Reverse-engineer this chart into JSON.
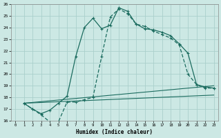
{
  "xlabel": "Humidex (Indice chaleur)",
  "xlim": [
    -0.5,
    23.5
  ],
  "ylim": [
    16,
    26
  ],
  "xticks": [
    0,
    1,
    2,
    3,
    4,
    5,
    6,
    7,
    8,
    9,
    10,
    11,
    12,
    13,
    14,
    15,
    16,
    17,
    18,
    19,
    20,
    21,
    22,
    23
  ],
  "yticks": [
    16,
    17,
    18,
    19,
    20,
    21,
    22,
    23,
    24,
    25,
    26
  ],
  "bg_color": "#cce8e4",
  "grid_color": "#aacfcb",
  "line_color": "#1a6b5e",
  "line1_x": [
    1,
    2,
    3,
    4,
    5,
    6,
    7,
    8,
    9,
    10,
    11,
    12,
    13,
    14,
    15,
    16,
    17,
    18,
    19,
    20,
    21,
    22,
    23
  ],
  "line1_y": [
    17.5,
    17.0,
    16.6,
    16.9,
    17.5,
    18.1,
    21.5,
    24.0,
    24.8,
    23.9,
    24.2,
    25.7,
    25.4,
    24.3,
    23.9,
    23.8,
    23.6,
    23.3,
    22.6,
    21.8,
    19.1,
    18.9,
    18.8
  ],
  "line2_x": [
    1,
    2,
    3,
    4,
    5,
    6,
    7,
    8,
    9,
    10,
    11,
    12,
    13,
    14,
    15,
    16,
    17,
    18,
    19,
    20,
    21,
    22,
    23
  ],
  "line2_y": [
    17.5,
    17.0,
    16.5,
    15.9,
    15.9,
    17.6,
    17.6,
    17.8,
    18.0,
    21.5,
    24.9,
    25.6,
    25.2,
    24.3,
    24.1,
    23.7,
    23.4,
    23.1,
    22.5,
    20.0,
    19.1,
    18.8,
    18.8
  ],
  "line3_x": [
    1,
    23
  ],
  "line3_y": [
    17.5,
    19.0
  ],
  "line4_x": [
    1,
    23
  ],
  "line4_y": [
    17.5,
    18.2
  ]
}
